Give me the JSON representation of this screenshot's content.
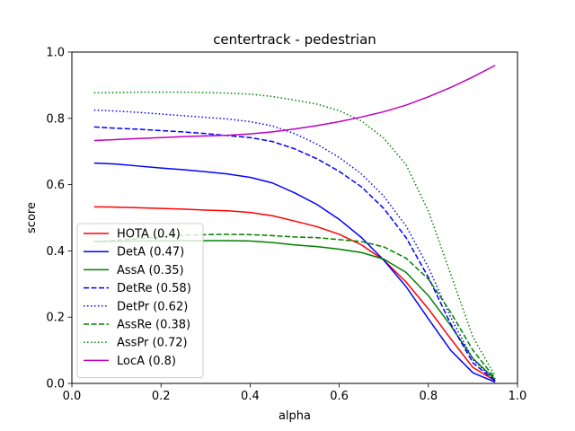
{
  "chart_data": {
    "type": "line",
    "title": "centertrack - pedestrian",
    "xlabel": "alpha",
    "ylabel": "score",
    "xlim": [
      0.0,
      1.0
    ],
    "ylim": [
      0.0,
      1.0
    ],
    "xticks": [
      "0.0",
      "0.2",
      "0.4",
      "0.6",
      "0.8",
      "1.0"
    ],
    "yticks": [
      "0.0",
      "0.2",
      "0.4",
      "0.6",
      "0.8",
      "1.0"
    ],
    "grid": false,
    "legend_position": "lower-left",
    "x": [
      0.05,
      0.1,
      0.15,
      0.2,
      0.25,
      0.3,
      0.35,
      0.4,
      0.45,
      0.5,
      0.55,
      0.6,
      0.65,
      0.7,
      0.75,
      0.8,
      0.85,
      0.9,
      0.95
    ],
    "series": [
      {
        "name": "HOTA (0.4)",
        "color": "#ff0000",
        "dash": "solid",
        "values": [
          0.533,
          0.532,
          0.53,
          0.528,
          0.526,
          0.523,
          0.521,
          0.516,
          0.506,
          0.49,
          0.473,
          0.45,
          0.418,
          0.372,
          0.306,
          0.225,
          0.135,
          0.048,
          0.008
        ]
      },
      {
        "name": "DetA (0.47)",
        "color": "#0000ff",
        "dash": "solid",
        "values": [
          0.665,
          0.662,
          0.656,
          0.65,
          0.645,
          0.639,
          0.632,
          0.622,
          0.605,
          0.575,
          0.54,
          0.495,
          0.44,
          0.372,
          0.292,
          0.195,
          0.1,
          0.032,
          0.004
        ]
      },
      {
        "name": "AssA (0.35)",
        "color": "#008000",
        "dash": "solid",
        "values": [
          0.428,
          0.429,
          0.43,
          0.43,
          0.431,
          0.431,
          0.431,
          0.43,
          0.425,
          0.418,
          0.413,
          0.405,
          0.395,
          0.375,
          0.335,
          0.265,
          0.175,
          0.075,
          0.012
        ]
      },
      {
        "name": "DetRe (0.58)",
        "color": "#0000ff",
        "dash": "dashed",
        "values": [
          0.774,
          0.77,
          0.767,
          0.763,
          0.759,
          0.754,
          0.748,
          0.742,
          0.73,
          0.708,
          0.678,
          0.64,
          0.593,
          0.528,
          0.44,
          0.32,
          0.18,
          0.062,
          0.007
        ]
      },
      {
        "name": "DetPr (0.62)",
        "color": "#0000ff",
        "dash": "dotted",
        "values": [
          0.825,
          0.822,
          0.818,
          0.813,
          0.808,
          0.803,
          0.798,
          0.79,
          0.777,
          0.754,
          0.722,
          0.682,
          0.632,
          0.565,
          0.475,
          0.35,
          0.2,
          0.072,
          0.008
        ]
      },
      {
        "name": "AssRe (0.38)",
        "color": "#008000",
        "dash": "dashed",
        "values": [
          0.428,
          0.432,
          0.437,
          0.442,
          0.447,
          0.449,
          0.45,
          0.449,
          0.446,
          0.442,
          0.44,
          0.434,
          0.428,
          0.412,
          0.378,
          0.315,
          0.215,
          0.1,
          0.015
        ]
      },
      {
        "name": "AssPr (0.72)",
        "color": "#008000",
        "dash": "dotted",
        "values": [
          0.877,
          0.878,
          0.879,
          0.879,
          0.879,
          0.878,
          0.876,
          0.873,
          0.866,
          0.855,
          0.843,
          0.823,
          0.792,
          0.74,
          0.66,
          0.52,
          0.33,
          0.14,
          0.022
        ]
      },
      {
        "name": "LocA (0.8)",
        "color": "#bf00bf",
        "dash": "solid",
        "values": [
          0.733,
          0.736,
          0.739,
          0.742,
          0.745,
          0.747,
          0.749,
          0.753,
          0.759,
          0.768,
          0.778,
          0.79,
          0.804,
          0.82,
          0.84,
          0.865,
          0.893,
          0.925,
          0.96
        ]
      }
    ]
  }
}
